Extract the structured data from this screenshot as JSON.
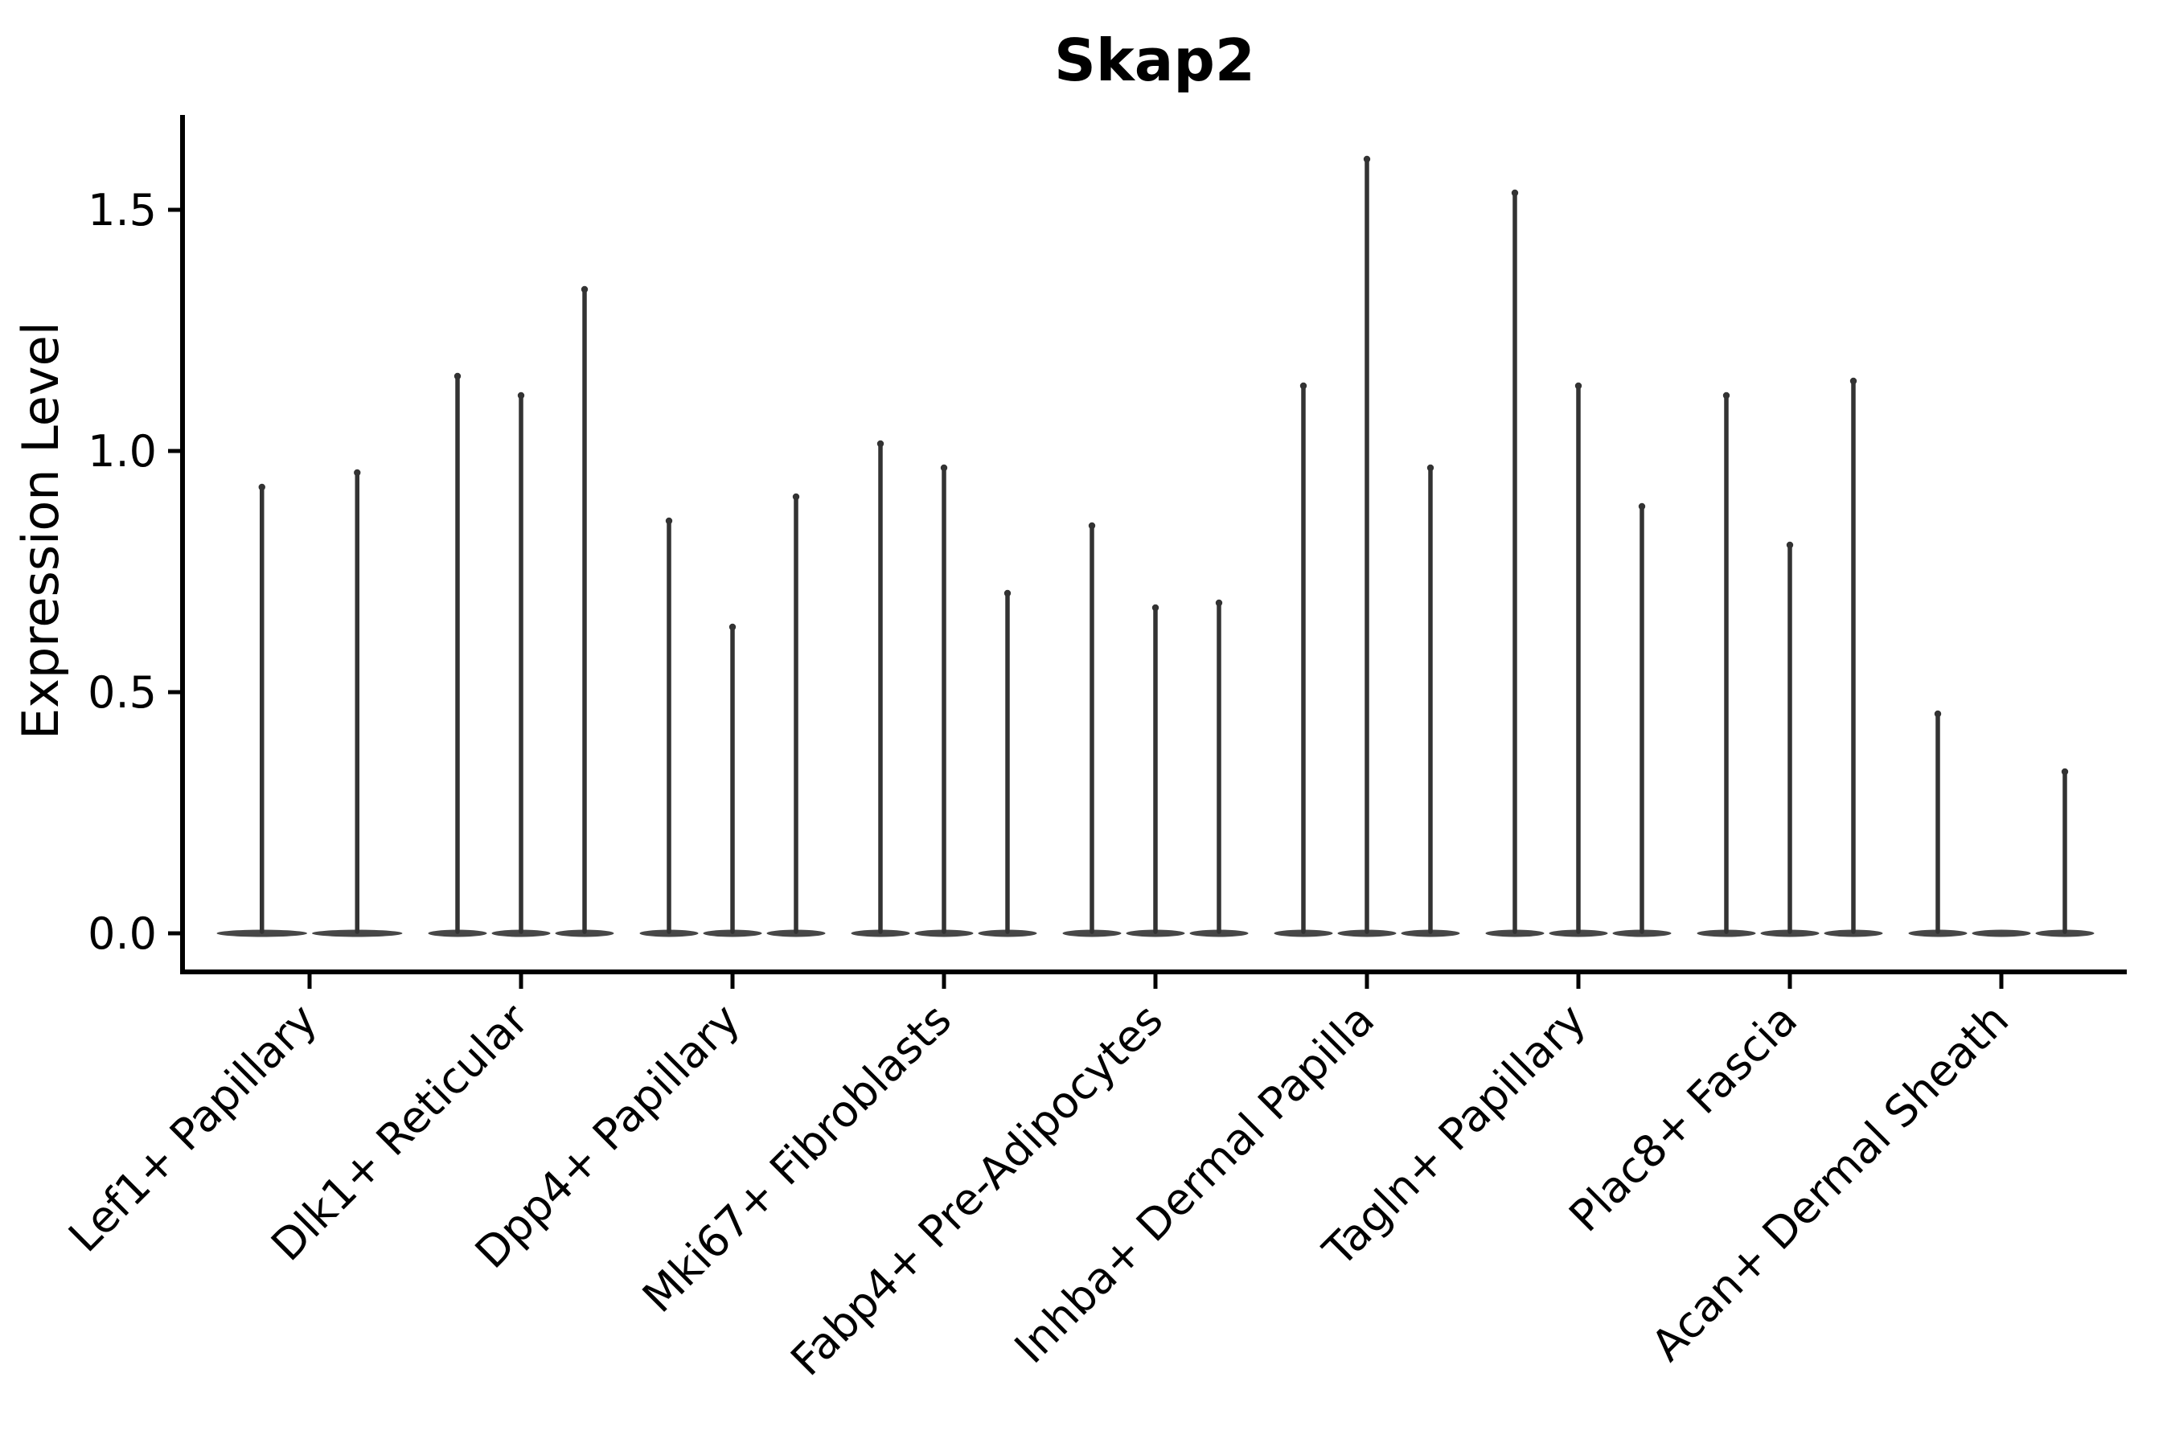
{
  "figure": {
    "title": "Skap2",
    "ylabel": "Expression Level"
  },
  "colors": {
    "background": "#ffffff",
    "axis": "#000000",
    "text": "#000000",
    "violin": "#333333",
    "violin_base": "#474747"
  },
  "chart_data": {
    "type": "violin",
    "title": "Skap2",
    "xlabel": "",
    "ylabel": "Expression Level",
    "ylim": [
      0,
      1.7
    ],
    "yticks": [
      0.0,
      0.5,
      1.0,
      1.5
    ],
    "grid": false,
    "legend": "none",
    "description": "Very thin violin plots (spikes) of expression level per cell-type identity; each identity contains 2-3 violins whose bases are wide flat lenses at 0 and whose maxima reach the listed expression values; a max of 0 means a flat violin with no spike",
    "categories": [
      "Lef1+ Papillary",
      "Dlk1+ Reticular",
      "Dpp4+ Papillary",
      "Mki67+ Fibroblasts",
      "Fabp4+ Pre-Adipocytes",
      "Inhba+ Dermal Papilla",
      "Tagln+ Papillary",
      "Plac8+ Fascia",
      "Acan+ Dermal Sheath"
    ],
    "series": [
      {
        "category": "Lef1+ Papillary",
        "violin_maxima": [
          0.93,
          0.96
        ]
      },
      {
        "category": "Dlk1+ Reticular",
        "violin_maxima": [
          1.16,
          1.12,
          1.34
        ]
      },
      {
        "category": "Dpp4+ Papillary",
        "violin_maxima": [
          0.86,
          0.64,
          0.91
        ]
      },
      {
        "category": "Mki67+ Fibroblasts",
        "violin_maxima": [
          1.02,
          0.97,
          0.71
        ]
      },
      {
        "category": "Fabp4+ Pre-Adipocytes",
        "violin_maxima": [
          0.85,
          0.68,
          0.69
        ]
      },
      {
        "category": "Inhba+ Dermal Papilla",
        "violin_maxima": [
          1.14,
          1.61,
          0.97
        ]
      },
      {
        "category": "Tagln+ Papillary",
        "violin_maxima": [
          1.54,
          1.14,
          0.89
        ]
      },
      {
        "category": "Plac8+ Fascia",
        "violin_maxima": [
          1.12,
          0.81,
          1.15
        ]
      },
      {
        "category": "Acan+ Dermal Sheath",
        "violin_maxima": [
          0.46,
          0.0,
          0.34
        ]
      }
    ]
  }
}
